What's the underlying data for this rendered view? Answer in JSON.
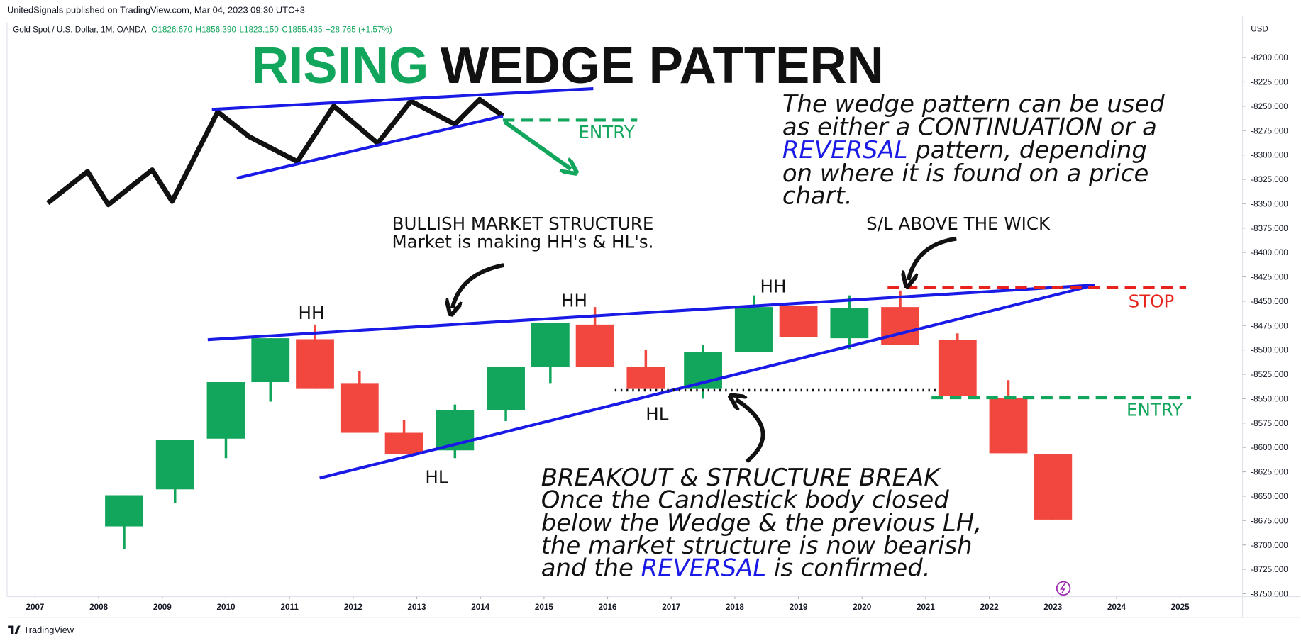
{
  "chart_data": {
    "type": "candlestick",
    "publisher": "UnitedSignals published on TradingView.com, Mar 04, 2023 09:30 UTC+3",
    "symbol": "Gold Spot / U.S. Dollar, 1M, OANDA",
    "quote": [
      "O1826.670",
      "H1856.390",
      "L1823.150",
      "C1855.435",
      "+28.765 (+1.57%)"
    ],
    "title": [
      "RISING",
      "WEDGE PATTERN"
    ],
    "currency": "USD",
    "brand": "TradingView",
    "annotations": {
      "wedge_note": [
        [
          "The wedge pattern can be used"
        ],
        [
          "as either a CONTINUATION or a"
        ],
        [
          "REVERSAL",
          " pattern, depending"
        ],
        [
          "on where it is found on a price"
        ],
        [
          "chart."
        ]
      ],
      "bullish": [
        "BULLISH MARKET STRUCTURE",
        "Market is making HH's & HL's."
      ],
      "stop_note": "S/L ABOVE THE WICK",
      "hh": [
        "HH",
        "HH",
        "HH"
      ],
      "hl": [
        "HL",
        "HL"
      ],
      "stop": "STOP",
      "entry": [
        "ENTRY",
        "ENTRY"
      ],
      "breakout": [
        [
          "BREAKOUT & STRUCTURE BREAK"
        ],
        [
          "Once the Candlestick body closed"
        ],
        [
          "below the Wedge & the previous LH,"
        ],
        [
          "the market structure is now bearish"
        ],
        [
          "and the ",
          "REVERSAL",
          " is confirmed."
        ]
      ]
    },
    "x": [
      2008.4,
      2009.2,
      2010.0,
      2010.7,
      2011.4,
      2012.1,
      2012.8,
      2013.6,
      2014.4,
      2015.1,
      2015.8,
      2016.6,
      2017.5,
      2018.3,
      2019.0,
      2019.8,
      2020.6,
      2021.5,
      2022.3,
      2023.0
    ],
    "open": [
      -8681,
      -8643,
      -8591,
      -8533,
      -8489,
      -8534,
      -8585,
      -8603,
      -8562,
      -8517,
      -8474,
      -8517,
      -8540,
      -8502,
      -8455,
      -8488,
      -8456,
      -8490,
      -8549,
      -8607
    ],
    "high": [
      -8649,
      -8592,
      -8533,
      -8488,
      -8474,
      -8522,
      -8572,
      -8556,
      -8517,
      -8472,
      -8456,
      -8500,
      -8495,
      -8444,
      -8455,
      -8444,
      -8439,
      -8483,
      -8531,
      -8607
    ],
    "low": [
      -8704,
      -8657,
      -8611,
      -8553,
      -8540,
      -8585,
      -8607,
      -8611,
      -8573,
      -8534,
      -8517,
      -8540,
      -8550,
      -8502,
      -8487,
      -8499,
      -8495,
      -8547,
      -8606,
      -8674
    ],
    "close": [
      -8649,
      -8592,
      -8533,
      -8488,
      -8540,
      -8585,
      -8607,
      -8562,
      -8517,
      -8472,
      -8517,
      -8540,
      -8502,
      -8456,
      -8487,
      -8457,
      -8495,
      -8547,
      -8606,
      -8674
    ],
    "up_color": "#12a55c",
    "down_color": "#f2473f",
    "grid": false,
    "xlim": [
      2006.56,
      2025.98
    ],
    "xticks": [
      2007,
      2008,
      2009,
      2010,
      2011,
      2012,
      2013,
      2014,
      2015,
      2016,
      2017,
      2018,
      2019,
      2020,
      2021,
      2022,
      2023,
      2024,
      2025
    ],
    "ylim": [
      -8753,
      -8164
    ],
    "yticks": [
      {
        "value": -8200,
        "label": "-8200.000"
      },
      {
        "value": -8225,
        "label": "-8225.000"
      },
      {
        "value": -8250,
        "label": "-8250.000"
      },
      {
        "value": -8275,
        "label": "-8275.000"
      },
      {
        "value": -8300,
        "label": "-8300.000"
      },
      {
        "value": -8325,
        "label": "-8325.000"
      },
      {
        "value": -8350,
        "label": "-8350.000"
      },
      {
        "value": -8375,
        "label": "-8375.000"
      },
      {
        "value": -8400,
        "label": "-8400.000"
      },
      {
        "value": -8425,
        "label": "-8425.000"
      },
      {
        "value": -8450,
        "label": "-8450.000"
      },
      {
        "value": -8475,
        "label": "-8475.000"
      },
      {
        "value": -8500,
        "label": "-8500.000"
      },
      {
        "value": -8525,
        "label": "-8525.000"
      },
      {
        "value": -8550,
        "label": "-8550.000"
      },
      {
        "value": -8575,
        "label": "-8575.000"
      },
      {
        "value": -8600,
        "label": "-8600.000"
      },
      {
        "value": -8625,
        "label": "-8625.000"
      },
      {
        "value": -8650,
        "label": "-8650.000"
      },
      {
        "value": -8675,
        "label": "-8675.000"
      },
      {
        "value": -8700,
        "label": "-8700.000"
      },
      {
        "value": -8725,
        "label": "-8725.000"
      },
      {
        "value": -8750,
        "label": "-8750.000"
      }
    ]
  }
}
